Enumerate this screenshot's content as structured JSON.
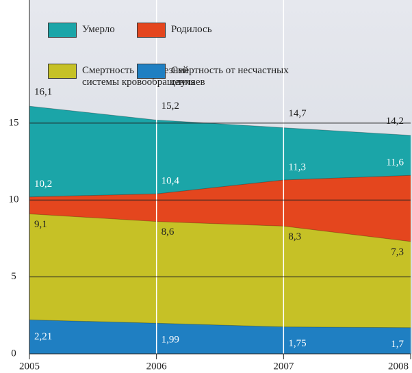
{
  "chart_data": {
    "type": "area",
    "categories": [
      "2005",
      "2006",
      "2007",
      "2008"
    ],
    "series": [
      {
        "name": "Умерло",
        "color": "#1ba5a8",
        "values": [
          16.1,
          15.2,
          14.7,
          14.2
        ],
        "value_labels": [
          "16,1",
          "15,2",
          "14,7",
          "14,2"
        ]
      },
      {
        "name": "Родилось",
        "color": "#e4461e",
        "values": [
          10.2,
          10.4,
          11.3,
          11.6
        ],
        "value_labels": [
          "10,2",
          "10,4",
          "11,3",
          "11,6"
        ]
      },
      {
        "name": "Смертность от болезней системы кровообращения",
        "color": "#c6c126",
        "values": [
          9.1,
          8.6,
          8.3,
          7.3
        ],
        "value_labels": [
          "9,1",
          "8,6",
          "8,3",
          "7,3"
        ]
      },
      {
        "name": "Смертность от несчастных случаев",
        "color": "#1f7fc2",
        "values": [
          2.21,
          1.99,
          1.75,
          1.7
        ],
        "value_labels": [
          "2,21",
          "1,99",
          "1,75",
          "1,7"
        ]
      }
    ],
    "ylim": [
      0,
      23
    ],
    "yticks": [
      0,
      5,
      10,
      15
    ],
    "grid": true
  }
}
